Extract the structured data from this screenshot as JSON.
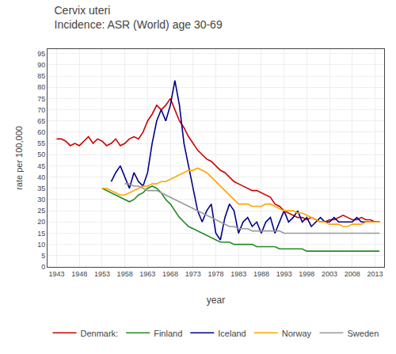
{
  "chart_data": {
    "type": "line",
    "title": "Cervix uteri",
    "subtitle": "Incidence: ASR (World) age 30-69",
    "x_label": "year",
    "y_label": "rate per 100,000",
    "xlim": [
      1941,
      2015
    ],
    "ylim": [
      0,
      97
    ],
    "xticks": [
      1943,
      1948,
      1953,
      1958,
      1963,
      1968,
      1973,
      1978,
      1983,
      1988,
      1993,
      1998,
      2003,
      2008,
      2013
    ],
    "yticks": [
      0,
      5,
      10,
      15,
      20,
      25,
      30,
      35,
      40,
      45,
      50,
      55,
      60,
      65,
      70,
      75,
      80,
      85,
      90,
      95
    ],
    "grid": true,
    "legend": "bottom",
    "series": [
      {
        "name": "Denmark:",
        "color": "#cc0000",
        "x": [
          1943,
          1944,
          1945,
          1946,
          1947,
          1948,
          1949,
          1950,
          1951,
          1952,
          1953,
          1954,
          1955,
          1956,
          1957,
          1958,
          1959,
          1960,
          1961,
          1962,
          1963,
          1964,
          1965,
          1966,
          1967,
          1968,
          1969,
          1970,
          1971,
          1972,
          1973,
          1974,
          1975,
          1976,
          1977,
          1978,
          1979,
          1980,
          1981,
          1982,
          1983,
          1984,
          1985,
          1986,
          1987,
          1988,
          1989,
          1990,
          1991,
          1992,
          1993,
          1994,
          1995,
          1996,
          1997,
          1998,
          1999,
          2000,
          2001,
          2002,
          2003,
          2004,
          2005,
          2006,
          2007,
          2008,
          2009,
          2010,
          2011,
          2012,
          2013,
          2014
        ],
        "values": [
          57,
          57,
          56,
          54,
          55,
          54,
          56,
          58,
          55,
          57,
          56,
          54,
          55,
          57,
          54,
          55,
          57,
          58,
          57,
          60,
          65,
          68,
          72,
          70,
          72,
          75,
          70,
          65,
          62,
          58,
          55,
          52,
          50,
          48,
          47,
          45,
          43,
          42,
          40,
          38,
          37,
          36,
          35,
          34,
          34,
          33,
          32,
          31,
          28,
          27,
          25,
          24,
          23,
          22,
          22,
          21,
          22,
          21,
          20,
          20,
          21,
          21,
          22,
          23,
          22,
          21,
          21,
          22,
          21,
          21,
          20,
          20
        ]
      },
      {
        "name": "Finland",
        "color": "#228B22",
        "x": [
          1953,
          1954,
          1955,
          1956,
          1957,
          1958,
          1959,
          1960,
          1961,
          1962,
          1963,
          1964,
          1965,
          1966,
          1967,
          1968,
          1969,
          1970,
          1971,
          1972,
          1973,
          1974,
          1975,
          1976,
          1977,
          1978,
          1979,
          1980,
          1981,
          1982,
          1983,
          1984,
          1985,
          1986,
          1987,
          1988,
          1989,
          1990,
          1991,
          1992,
          1993,
          1994,
          1995,
          1996,
          1997,
          1998,
          1999,
          2000,
          2001,
          2002,
          2003,
          2004,
          2005,
          2006,
          2007,
          2008,
          2009,
          2010,
          2011,
          2012,
          2013,
          2014
        ],
        "values": [
          35,
          34,
          33,
          32,
          31,
          30,
          29,
          30,
          32,
          33,
          35,
          36,
          35,
          33,
          30,
          28,
          25,
          22,
          20,
          18,
          17,
          16,
          15,
          14,
          13,
          12,
          11,
          11,
          11,
          10,
          10,
          10,
          10,
          10,
          9,
          9,
          9,
          9,
          9,
          8,
          8,
          8,
          8,
          8,
          8,
          7,
          7,
          7,
          7,
          7,
          7,
          7,
          7,
          7,
          7,
          7,
          7,
          7,
          7,
          7,
          7,
          7
        ]
      },
      {
        "name": "Iceland",
        "color": "#00008B",
        "x": [
          1955,
          1956,
          1957,
          1958,
          1959,
          1960,
          1961,
          1962,
          1963,
          1964,
          1965,
          1966,
          1967,
          1968,
          1969,
          1970,
          1971,
          1972,
          1973,
          1974,
          1975,
          1976,
          1977,
          1978,
          1979,
          1980,
          1981,
          1982,
          1983,
          1984,
          1985,
          1986,
          1987,
          1988,
          1989,
          1990,
          1991,
          1992,
          1993,
          1994,
          1995,
          1996,
          1997,
          1998,
          1999,
          2000,
          2001,
          2002,
          2003,
          2004,
          2005,
          2006,
          2007,
          2008,
          2009,
          2010,
          2011,
          2012,
          2013,
          2014
        ],
        "values": [
          38,
          42,
          45,
          40,
          35,
          42,
          38,
          36,
          42,
          55,
          65,
          70,
          65,
          72,
          83,
          72,
          55,
          45,
          35,
          25,
          20,
          25,
          28,
          15,
          12,
          22,
          28,
          25,
          15,
          20,
          22,
          18,
          20,
          15,
          20,
          22,
          15,
          20,
          25,
          20,
          22,
          25,
          20,
          22,
          18,
          20,
          22,
          20,
          20,
          22,
          20,
          20,
          20,
          20,
          22,
          20,
          20,
          20,
          20,
          20
        ]
      },
      {
        "name": "Norway",
        "color": "#FFA500",
        "x": [
          1953,
          1954,
          1955,
          1956,
          1957,
          1958,
          1959,
          1960,
          1961,
          1962,
          1963,
          1964,
          1965,
          1966,
          1967,
          1968,
          1969,
          1970,
          1971,
          1972,
          1973,
          1974,
          1975,
          1976,
          1977,
          1978,
          1979,
          1980,
          1981,
          1982,
          1983,
          1984,
          1985,
          1986,
          1987,
          1988,
          1989,
          1990,
          1991,
          1992,
          1993,
          1994,
          1995,
          1996,
          1997,
          1998,
          1999,
          2000,
          2001,
          2002,
          2003,
          2004,
          2005,
          2006,
          2007,
          2008,
          2009,
          2010,
          2011,
          2012,
          2013,
          2014
        ],
        "values": [
          35,
          35,
          34,
          33,
          32,
          32,
          33,
          34,
          35,
          36,
          36,
          37,
          37,
          38,
          38,
          39,
          40,
          41,
          42,
          43,
          43,
          44,
          43,
          42,
          40,
          38,
          36,
          34,
          32,
          30,
          28,
          28,
          28,
          27,
          27,
          27,
          28,
          28,
          27,
          26,
          25,
          25,
          25,
          24,
          24,
          23,
          22,
          21,
          20,
          20,
          19,
          19,
          19,
          18,
          18,
          19,
          19,
          19,
          20,
          20,
          20,
          20
        ]
      },
      {
        "name": "Sweden",
        "color": "#999999",
        "x": [
          1958,
          1959,
          1960,
          1961,
          1962,
          1963,
          1964,
          1965,
          1966,
          1967,
          1968,
          1969,
          1970,
          1971,
          1972,
          1973,
          1974,
          1975,
          1976,
          1977,
          1978,
          1979,
          1980,
          1981,
          1982,
          1983,
          1984,
          1985,
          1986,
          1987,
          1988,
          1989,
          1990,
          1991,
          1992,
          1993,
          1994,
          1995,
          1996,
          1997,
          1998,
          1999,
          2000,
          2001,
          2002,
          2003,
          2004,
          2005,
          2006,
          2007,
          2008,
          2009,
          2010,
          2011,
          2012,
          2013,
          2014
        ],
        "values": [
          37,
          37,
          36,
          36,
          35,
          34,
          34,
          34,
          33,
          32,
          31,
          30,
          29,
          28,
          27,
          26,
          25,
          24,
          23,
          22,
          21,
          20,
          19,
          18,
          18,
          17,
          17,
          17,
          16,
          16,
          16,
          16,
          16,
          16,
          16,
          15,
          15,
          15,
          15,
          15,
          15,
          15,
          15,
          15,
          15,
          15,
          15,
          15,
          15,
          15,
          15,
          15,
          15,
          15,
          15,
          15,
          15
        ]
      }
    ]
  }
}
